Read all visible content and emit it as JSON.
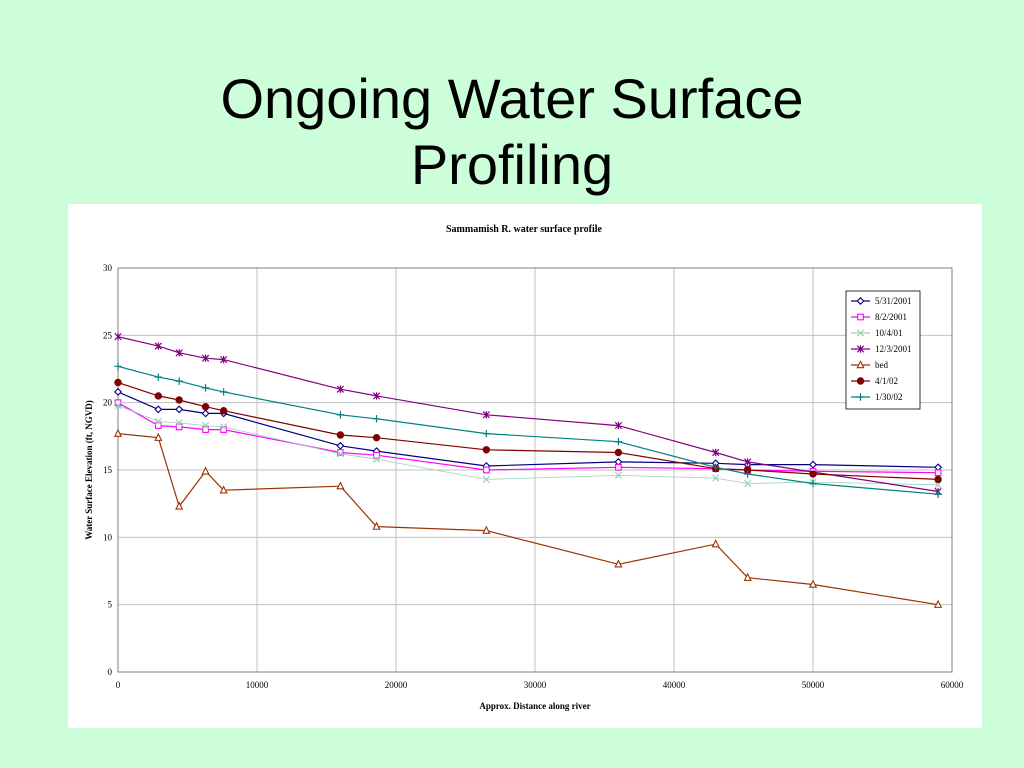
{
  "slide": {
    "title_line1": "Ongoing Water Surface",
    "title_line2": "Profiling"
  },
  "colors": {
    "background": "#ccffd9",
    "panel": "#ffffff",
    "grid": "#c0c0c0"
  },
  "chart_data": {
    "type": "line",
    "title": "Sammamish R. water surface profile",
    "xlabel": "Approx. Distance along river",
    "ylabel": "Water Surface Elevation (ft, NGVD)",
    "xlim": [
      0,
      60000
    ],
    "ylim": [
      0,
      30
    ],
    "xticks": [
      0,
      10000,
      20000,
      30000,
      40000,
      50000,
      60000
    ],
    "yticks": [
      0,
      5,
      10,
      15,
      20,
      25,
      30
    ],
    "grid": true,
    "legend_position": "top-right",
    "series": [
      {
        "name": "5/31/2001",
        "color": "#000080",
        "marker": "diamond",
        "x": [
          0,
          2900,
          4400,
          6300,
          7600,
          16000,
          18600,
          26500,
          36000,
          43000,
          45300,
          50000,
          59000
        ],
        "y": [
          20.8,
          19.5,
          19.5,
          19.2,
          19.2,
          16.8,
          16.4,
          15.3,
          15.6,
          15.5,
          15.4,
          15.4,
          15.2
        ]
      },
      {
        "name": "8/2/2001",
        "color": "#ff00ff",
        "marker": "square",
        "x": [
          0,
          2900,
          4400,
          6300,
          7600,
          16000,
          18600,
          26500,
          36000,
          43000,
          45300,
          50000,
          59000
        ],
        "y": [
          20.0,
          18.3,
          18.2,
          18.0,
          18.0,
          16.3,
          16.1,
          15.0,
          15.2,
          15.1,
          15.0,
          14.9,
          14.8
        ]
      },
      {
        "name": "10/4/01",
        "color": "#9acfb8",
        "marker": "x",
        "x": [
          0,
          2900,
          4400,
          6300,
          7600,
          16000,
          18600,
          26500,
          36000,
          43000,
          45300,
          50000,
          59000
        ],
        "y": [
          19.8,
          18.6,
          18.5,
          18.3,
          18.2,
          16.2,
          15.8,
          14.3,
          14.6,
          14.4,
          14.0,
          14.1,
          13.9
        ]
      },
      {
        "name": "12/3/2001",
        "color": "#800080",
        "marker": "star",
        "x": [
          0,
          2900,
          4400,
          6300,
          7600,
          16000,
          18600,
          26500,
          36000,
          43000,
          45300,
          59000
        ],
        "y": [
          24.9,
          24.2,
          23.7,
          23.3,
          23.2,
          21.0,
          20.5,
          19.1,
          18.3,
          16.3,
          15.6,
          13.4
        ]
      },
      {
        "name": "bed",
        "color": "#993300",
        "marker": "triangle",
        "x": [
          0,
          2900,
          4400,
          6300,
          7600,
          16000,
          18600,
          26500,
          36000,
          43000,
          45300,
          50000,
          59000
        ],
        "y": [
          17.7,
          17.4,
          12.3,
          14.9,
          13.5,
          13.8,
          10.8,
          10.5,
          8.0,
          9.5,
          7.0,
          6.5,
          5.0
        ]
      },
      {
        "name": "4/1/02",
        "color": "#800000",
        "marker": "circle",
        "x": [
          0,
          2900,
          4400,
          6300,
          7600,
          16000,
          18600,
          26500,
          36000,
          43000,
          45300,
          50000,
          59000
        ],
        "y": [
          21.5,
          20.5,
          20.2,
          19.7,
          19.4,
          17.6,
          17.4,
          16.5,
          16.3,
          15.1,
          15.0,
          14.7,
          14.3
        ]
      },
      {
        "name": "1/30/02",
        "color": "#008080",
        "marker": "plus",
        "x": [
          0,
          2900,
          4400,
          6300,
          7600,
          16000,
          18600,
          26500,
          36000,
          43000,
          45300,
          50000,
          59000
        ],
        "y": [
          22.7,
          21.9,
          21.6,
          21.1,
          20.8,
          19.1,
          18.8,
          17.7,
          17.1,
          15.2,
          14.7,
          14.0,
          13.2
        ]
      }
    ]
  }
}
